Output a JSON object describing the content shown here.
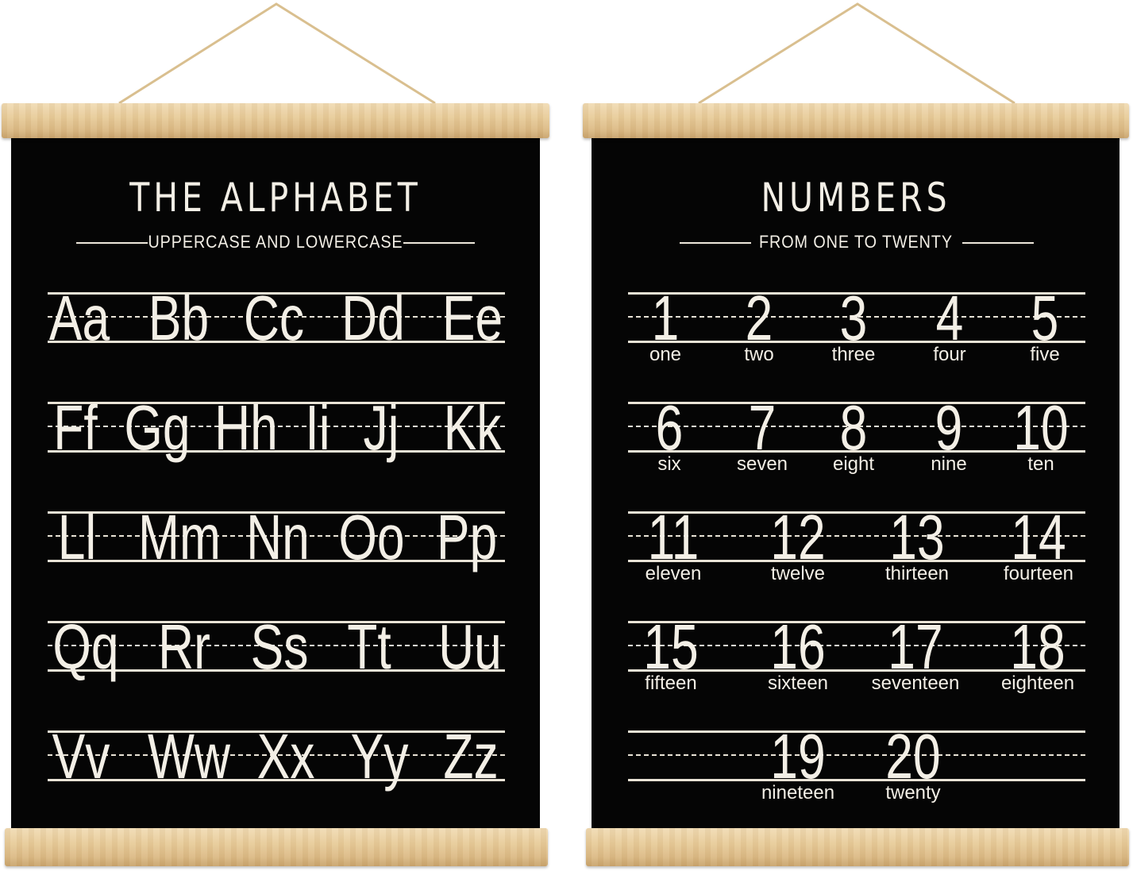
{
  "alphabet_poster": {
    "title": "THE ALPHABET",
    "subtitle": "UPPERCASE AND LOWERCASE",
    "rows": [
      [
        "Aa",
        "Bb",
        "Cc",
        "Dd",
        "Ee"
      ],
      [
        "Ff",
        "Gg",
        "Hh",
        "Ii",
        "Jj",
        "Kk"
      ],
      [
        "Ll",
        "Mm",
        "Nn",
        "Oo",
        "Pp"
      ],
      [
        "Qq",
        "Rr",
        "Ss",
        "Tt",
        "Uu"
      ],
      [
        "Vv",
        "Ww",
        "Xx",
        "Yy",
        "Zz"
      ]
    ]
  },
  "numbers_poster": {
    "title": "NUMBERS",
    "subtitle": "FROM ONE TO TWENTY",
    "rows": [
      [
        {
          "n": "1",
          "w": "one"
        },
        {
          "n": "2",
          "w": "two"
        },
        {
          "n": "3",
          "w": "three"
        },
        {
          "n": "4",
          "w": "four"
        },
        {
          "n": "5",
          "w": "five"
        }
      ],
      [
        {
          "n": "6",
          "w": "six"
        },
        {
          "n": "7",
          "w": "seven"
        },
        {
          "n": "8",
          "w": "eight"
        },
        {
          "n": "9",
          "w": "nine"
        },
        {
          "n": "10",
          "w": "ten"
        }
      ],
      [
        {
          "n": "11",
          "w": "eleven"
        },
        {
          "n": "12",
          "w": "twelve"
        },
        {
          "n": "13",
          "w": "thirteen"
        },
        {
          "n": "14",
          "w": "fourteen"
        }
      ],
      [
        {
          "n": "15",
          "w": "fifteen"
        },
        {
          "n": "16",
          "w": "sixteen"
        },
        {
          "n": "17",
          "w": "seventeen"
        },
        {
          "n": "18",
          "w": "eighteen"
        }
      ],
      [
        {
          "n": "19",
          "w": "nineteen"
        },
        {
          "n": "20",
          "w": "twenty"
        }
      ]
    ]
  },
  "colors": {
    "board": "#050505",
    "chalk": "#f3efe6",
    "wood": "#e8cc9a"
  }
}
